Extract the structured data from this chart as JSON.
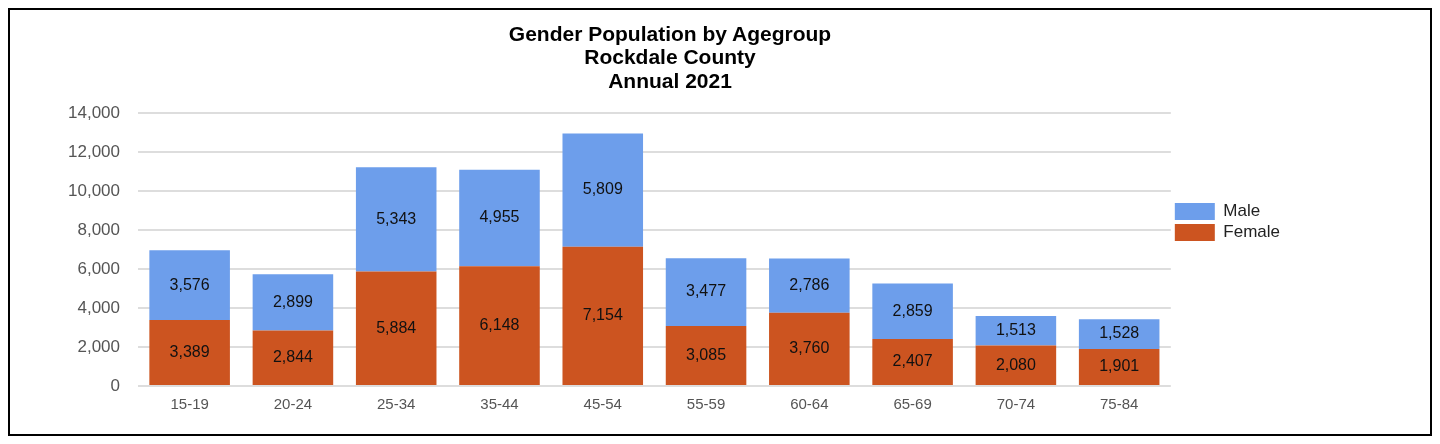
{
  "chart_data": {
    "type": "bar",
    "title": "Gender Population by Agegroup\nRockdale County\nAnnual 2021",
    "categories": [
      "15-19",
      "20-24",
      "25-34",
      "35-44",
      "45-54",
      "55-59",
      "60-64",
      "65-69",
      "70-74",
      "75-84"
    ],
    "series": [
      {
        "name": "Female",
        "color": "#cc5420",
        "values": [
          3389,
          2844,
          5884,
          6148,
          7154,
          3085,
          3760,
          2407,
          2080,
          1901
        ],
        "value_labels": [
          "3,389",
          "2,844",
          "5,884",
          "6,148",
          "7,154",
          "3,085",
          "3,760",
          "2,407",
          "2,080",
          "1,901"
        ]
      },
      {
        "name": "Male",
        "color": "#6d9eeb",
        "values": [
          3576,
          2899,
          5343,
          4955,
          5809,
          3477,
          2786,
          2859,
          1513,
          1528
        ],
        "value_labels": [
          "3,576",
          "2,899",
          "5,343",
          "4,955",
          "5,809",
          "3,477",
          "2,786",
          "2,859",
          "1,513",
          "1,528"
        ]
      }
    ],
    "stacked": true,
    "ylim": [
      0,
      14000
    ],
    "yticks": [
      {
        "value": 0,
        "label": "0"
      },
      {
        "value": 2000,
        "label": "2,000"
      },
      {
        "value": 4000,
        "label": "4,000"
      },
      {
        "value": 6000,
        "label": "6,000"
      },
      {
        "value": 8000,
        "label": "8,000"
      },
      {
        "value": 10000,
        "label": "10,000"
      },
      {
        "value": 12000,
        "label": "12,000"
      },
      {
        "value": 14000,
        "label": "14,000"
      }
    ],
    "grid": "y",
    "legend": "right"
  }
}
